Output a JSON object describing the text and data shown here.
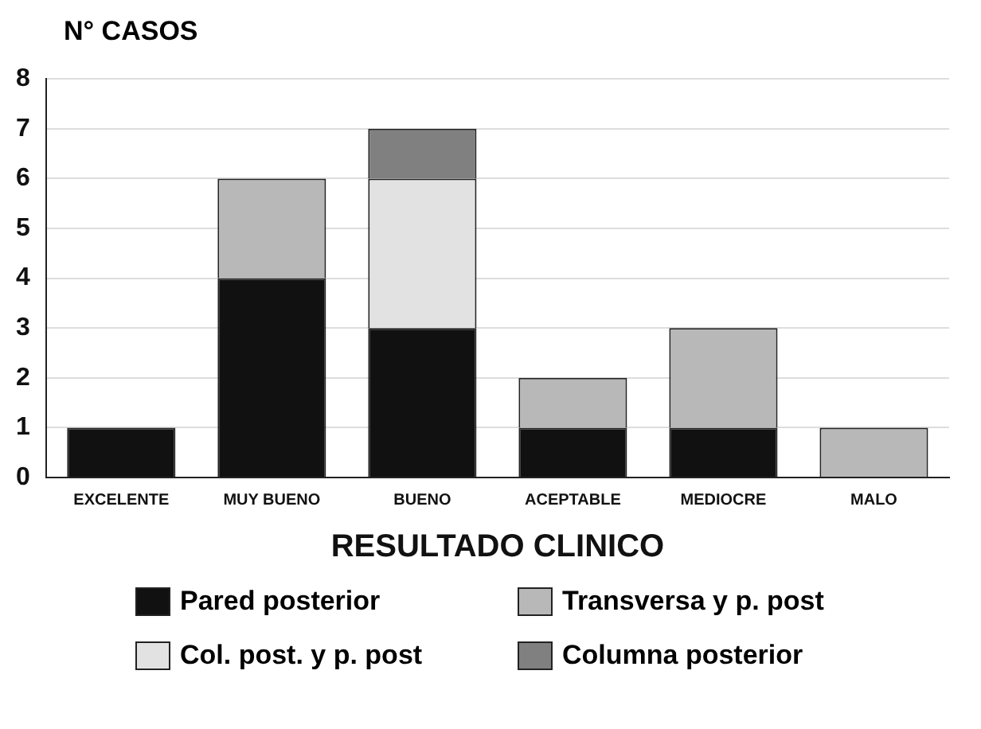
{
  "chart_data": {
    "type": "bar",
    "stacked": true,
    "ylabel": "N° CASOS",
    "xlabel": "RESULTADO CLINICO",
    "categories": [
      "EXCELENTE",
      "MUY BUENO",
      "BUENO",
      "ACEPTABLE",
      "MEDIOCRE",
      "MALO"
    ],
    "series": [
      {
        "name": "Pared posterior",
        "color": "#111111",
        "values": [
          1,
          4,
          3,
          1,
          1,
          null
        ]
      },
      {
        "name": "Transversa y p. post",
        "color": "#b8b8b8",
        "values": [
          null,
          2,
          null,
          1,
          2,
          1
        ]
      },
      {
        "name": "Col. post. y p. post",
        "color": "#e2e2e2",
        "values": [
          null,
          null,
          3,
          null,
          null,
          null
        ]
      },
      {
        "name": "Columna posterior",
        "color": "#808080",
        "values": [
          null,
          null,
          1,
          null,
          null,
          null
        ]
      }
    ],
    "ylim": [
      0,
      8
    ],
    "yticks": [
      0,
      1,
      2,
      3,
      4,
      5,
      6,
      7,
      8
    ],
    "grid": "y",
    "legend": "bottom"
  }
}
